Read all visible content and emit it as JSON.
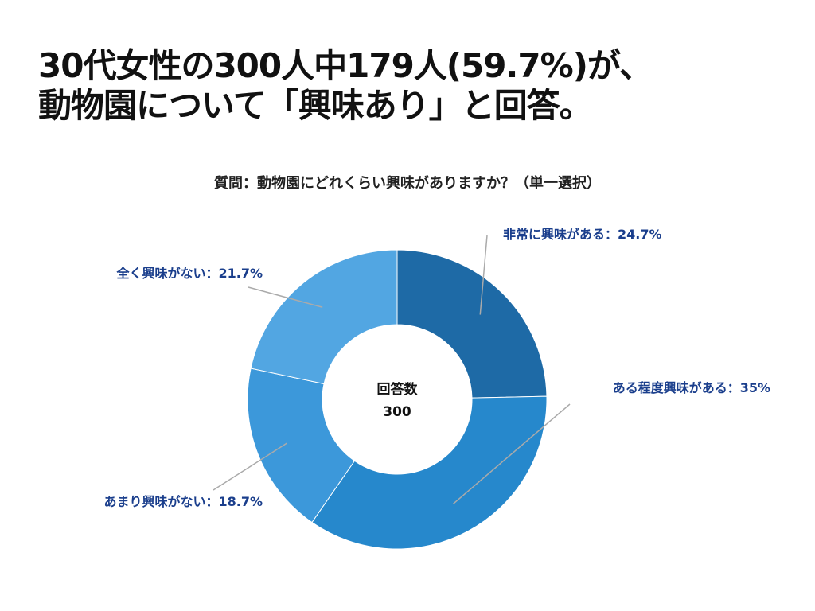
{
  "headline": {
    "line1": "30代女性の300人中179人(59.7%)が、",
    "line2": "動物園について「興味あり」と回答。"
  },
  "question": "質問：動物園にどれくらい興味がありますか？（単一選択）",
  "center": {
    "label": "回答数",
    "value": "300"
  },
  "chart_data": {
    "type": "pie",
    "variant": "donut",
    "title": "質問：動物園にどれくらい興味がありますか？（単一選択）",
    "total": 300,
    "slices": [
      {
        "name": "非常に興味がある",
        "value": 24.7,
        "label": "非常に興味がある：24.7%",
        "color": "#1e6aa6"
      },
      {
        "name": "ある程度興味がある",
        "value": 35,
        "label": "ある程度興味がある：35%",
        "color": "#2688cc"
      },
      {
        "name": "あまり興味がない",
        "value": 18.7,
        "label": "あまり興味がない：18.7%",
        "color": "#3c98da"
      },
      {
        "name": "全く興味がない",
        "value": 21.7,
        "label": "全く興味がない：21.7%",
        "color": "#52a6e2"
      }
    ],
    "label_color": "#1a3e8c",
    "leader_color": "#aaaaaa"
  }
}
